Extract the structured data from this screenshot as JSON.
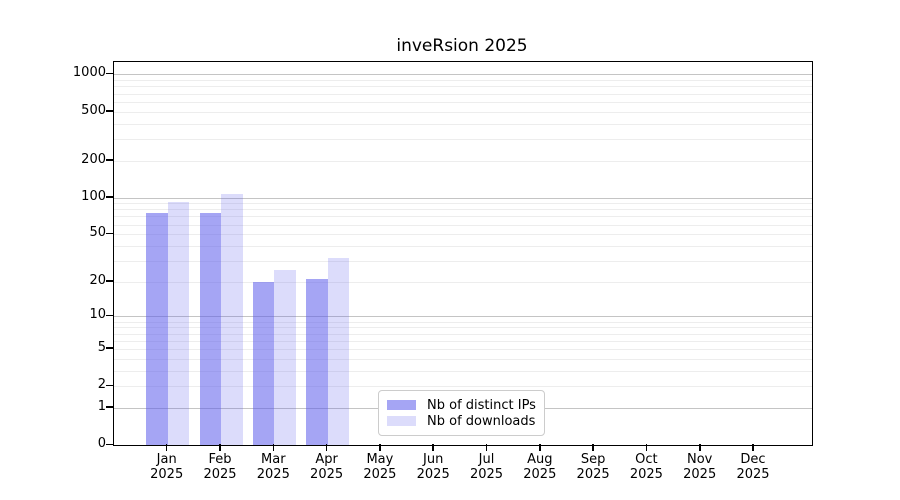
{
  "title": "inveRsion 2025",
  "legend": {
    "items": [
      {
        "label": "Nb of distinct IPs",
        "color": "rgba(88,88,235,0.54)"
      },
      {
        "label": "Nb of downloads",
        "color": "rgba(88,88,235,0.21)"
      }
    ]
  },
  "chart_data": {
    "type": "bar",
    "title": "inveRsion 2025",
    "categories": [
      "Jan",
      "Feb",
      "Mar",
      "Apr",
      "May",
      "Jun",
      "Jul",
      "Aug",
      "Sep",
      "Oct",
      "Nov",
      "Dec"
    ],
    "year": "2025",
    "series": [
      {
        "name": "Nb of distinct IPs",
        "color": "rgba(88,88,235,0.54)",
        "values": [
          75,
          75,
          20,
          21,
          0,
          0,
          0,
          0,
          0,
          0,
          0,
          0
        ]
      },
      {
        "name": "Nb of downloads",
        "color": "rgba(88,88,235,0.21)",
        "values": [
          92,
          107,
          25,
          32,
          0,
          0,
          0,
          0,
          0,
          0,
          0,
          0
        ]
      }
    ],
    "y_axis": {
      "scale": "log10(value+1)",
      "tick_labels": [
        0,
        1,
        2,
        5,
        10,
        20,
        50,
        100,
        200,
        500,
        1000
      ],
      "major_gridlines": [
        1,
        10,
        100,
        1000
      ],
      "minor_gridlines": [
        2,
        3,
        4,
        5,
        6,
        7,
        8,
        9,
        20,
        30,
        40,
        50,
        60,
        70,
        80,
        90,
        200,
        300,
        400,
        500,
        600,
        700,
        800,
        900
      ]
    },
    "x_axis": {
      "label_line2": "2025"
    },
    "legend_position": "bottom-center",
    "grid": "on",
    "colors": {
      "major_grid": "#c4c4c4",
      "minor_grid": "#ededed",
      "axis": "#000000",
      "background": "#ffffff"
    }
  }
}
